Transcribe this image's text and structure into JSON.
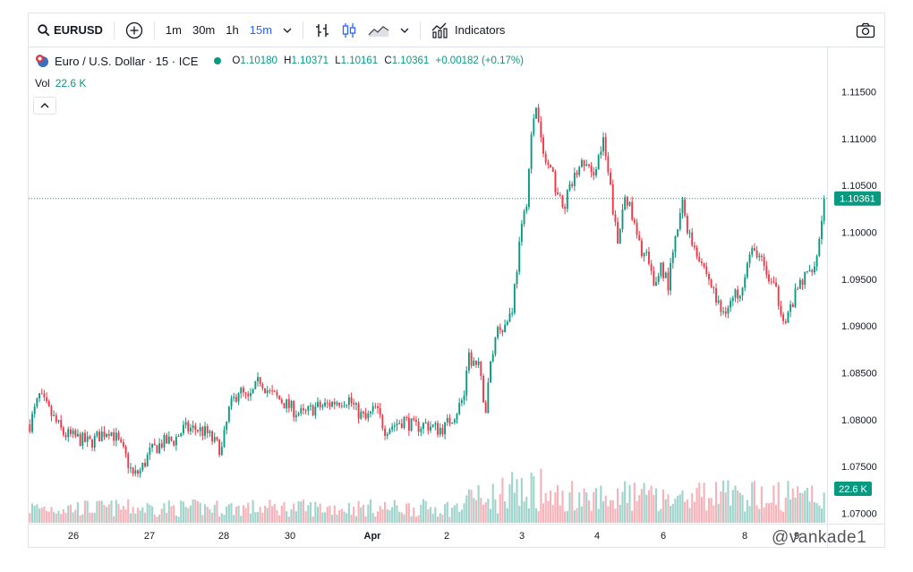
{
  "toolbar": {
    "symbol": "EURUSD",
    "intervals": [
      "1m",
      "30m",
      "1h",
      "15m"
    ],
    "active_interval": "15m",
    "indicators_label": "Indicators"
  },
  "legend": {
    "instrument": "Euro / U.S. Dollar · 15 · ICE",
    "o_label": "O",
    "o_value": "1.10180",
    "h_label": "H",
    "h_value": "1.10371",
    "l_label": "L",
    "l_value": "1.10161",
    "c_label": "C",
    "c_value": "1.10361",
    "change": "+0.00182 (+0.17%)",
    "vol_label": "Vol",
    "vol_value": "22.6 K"
  },
  "watermark": "@vankade1",
  "colors": {
    "up": "#089981",
    "down": "#f23645",
    "up_vol": "#8fcec4",
    "down_vol": "#f5a6ad",
    "last_price": "#089981"
  },
  "chart_data": {
    "type": "candlestick",
    "y_ticks": [
      "1.07000",
      "1.07500",
      "1.08000",
      "1.08500",
      "1.09000",
      "1.09500",
      "1.10000",
      "1.10500",
      "1.11000",
      "1.11500"
    ],
    "ylim": [
      1.0685,
      1.1163
    ],
    "x_ticks": [
      "26",
      "27",
      "28",
      "30",
      "Apr",
      "2",
      "3",
      "4",
      "6",
      "8",
      "9"
    ],
    "last_price_label": "1.10361",
    "last_volume_label": "22.6 K",
    "close_path": [
      [
        0,
        1.0795
      ],
      [
        4,
        1.0825
      ],
      [
        9,
        1.0805
      ],
      [
        14,
        1.0785
      ],
      [
        20,
        1.078
      ],
      [
        25,
        1.0775
      ],
      [
        30,
        1.0785
      ],
      [
        33,
        1.079
      ],
      [
        36,
        1.078
      ],
      [
        40,
        1.076
      ],
      [
        43,
        1.074
      ],
      [
        46,
        1.0745
      ],
      [
        50,
        1.0765
      ],
      [
        55,
        1.0775
      ],
      [
        60,
        1.0778
      ],
      [
        64,
        1.079
      ],
      [
        70,
        1.079
      ],
      [
        74,
        1.0785
      ],
      [
        77,
        1.0775
      ],
      [
        80,
        1.0768
      ],
      [
        83,
        1.081
      ],
      [
        87,
        1.0832
      ],
      [
        91,
        1.082
      ],
      [
        96,
        1.0843
      ],
      [
        100,
        1.0828
      ],
      [
        105,
        1.082
      ],
      [
        110,
        1.081
      ],
      [
        114,
        1.0805
      ],
      [
        118,
        1.0812
      ],
      [
        123,
        1.0815
      ],
      [
        128,
        1.082
      ],
      [
        133,
        1.0822
      ],
      [
        136,
        1.081
      ],
      [
        140,
        1.08
      ],
      [
        144,
        1.0812
      ],
      [
        148,
        1.079
      ],
      [
        152,
        1.0795
      ],
      [
        156,
        1.08
      ],
      [
        160,
        1.0792
      ],
      [
        165,
        1.0795
      ],
      [
        170,
        1.079
      ],
      [
        173,
        1.0792
      ],
      [
        178,
        1.081
      ],
      [
        181,
        1.0825
      ],
      [
        183,
        1.0865
      ],
      [
        187,
        1.0855
      ],
      [
        190,
        1.081
      ],
      [
        192,
        1.086
      ],
      [
        195,
        1.09
      ],
      [
        198,
        1.09
      ],
      [
        201,
        1.092
      ],
      [
        204,
        1.0985
      ],
      [
        207,
        1.1035
      ],
      [
        209,
        1.11
      ],
      [
        211,
        1.1135
      ],
      [
        214,
        1.108
      ],
      [
        216,
        1.107
      ],
      [
        219,
        1.105
      ],
      [
        222,
        1.1025
      ],
      [
        225,
        1.1045
      ],
      [
        228,
        1.1065
      ],
      [
        231,
        1.1075
      ],
      [
        234,
        1.106
      ],
      [
        237,
        1.108
      ],
      [
        239,
        1.1095
      ],
      [
        242,
        1.1045
      ],
      [
        245,
        1.0985
      ],
      [
        248,
        1.1045
      ],
      [
        251,
        1.1015
      ],
      [
        254,
        1.0985
      ],
      [
        257,
        1.0975
      ],
      [
        260,
        1.094
      ],
      [
        263,
        1.0965
      ],
      [
        266,
        1.0945
      ],
      [
        269,
        1.099
      ],
      [
        272,
        1.103
      ],
      [
        275,
        1.0995
      ],
      [
        279,
        1.0975
      ],
      [
        283,
        1.095
      ],
      [
        288,
        1.0915
      ],
      [
        292,
        1.0925
      ],
      [
        296,
        1.094
      ],
      [
        300,
        1.0975
      ],
      [
        303,
        1.098
      ],
      [
        307,
        1.0955
      ],
      [
        311,
        1.0935
      ],
      [
        315,
        1.0905
      ],
      [
        318,
        1.0925
      ],
      [
        321,
        1.0945
      ],
      [
        324,
        1.0955
      ],
      [
        328,
        1.0975
      ],
      [
        331,
        1.1036
      ]
    ],
    "candle_count": 332
  }
}
